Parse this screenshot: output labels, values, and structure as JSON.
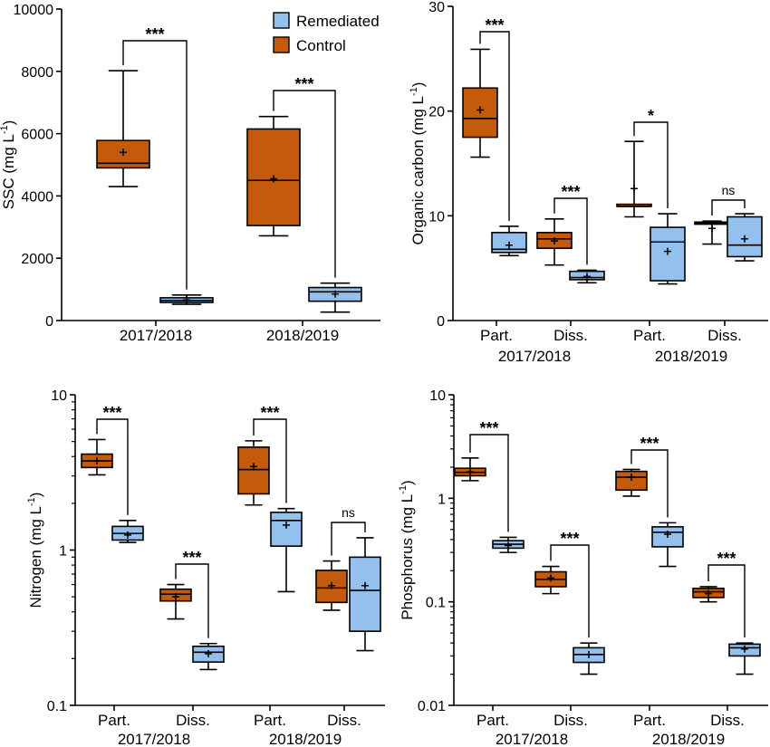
{
  "colors": {
    "control": "#C45A0C",
    "remediated": "#93C0EC",
    "outline": "#000000"
  },
  "legend": {
    "position": "top-right",
    "entries": [
      "Remediated",
      "Control"
    ]
  },
  "chart_data": [
    {
      "id": "ssc",
      "type": "box",
      "scale": "linear",
      "ylabel": "SSC (mg L",
      "ylabel_sup": "-1",
      "ylabel_end": ")",
      "ylim": [
        0,
        10000
      ],
      "yticks": [
        0,
        2000,
        4000,
        6000,
        8000,
        10000
      ],
      "yticklabels": [
        "0",
        "2000",
        "4000",
        "6000",
        "8000",
        "10000"
      ],
      "categories": [],
      "years": [
        "2017/2018",
        "2018/2019"
      ],
      "show_legend": true,
      "groups": [
        {
          "boxes": [
            {
              "series": "Control",
              "min": 4300,
              "q1": 4900,
              "median": 5050,
              "q3": 5780,
              "max": 8020,
              "mean": 5400
            },
            {
              "series": "Remediated",
              "min": 520,
              "q1": 580,
              "median": 640,
              "q3": 730,
              "max": 820,
              "mean": 660
            }
          ],
          "sig": "***"
        },
        {
          "boxes": [
            {
              "series": "Control",
              "min": 2720,
              "q1": 3050,
              "median": 4500,
              "q3": 6150,
              "max": 6550,
              "mean": 4550
            },
            {
              "series": "Remediated",
              "min": 270,
              "q1": 620,
              "median": 920,
              "q3": 1060,
              "max": 1200,
              "mean": 850
            }
          ],
          "sig": "***"
        }
      ]
    },
    {
      "id": "oc",
      "type": "box",
      "scale": "linear",
      "ylabel": "Organic carbon (mg L",
      "ylabel_sup": "-1",
      "ylabel_end": ")",
      "ylim": [
        0,
        30
      ],
      "yticks": [
        0,
        10,
        20,
        30
      ],
      "yticklabels": [
        "0",
        "10",
        "20",
        "30"
      ],
      "categories": [
        "Part.",
        "Diss.",
        "Part.",
        "Diss."
      ],
      "years": [
        "2017/2018",
        "2018/2019"
      ],
      "show_legend": false,
      "groups": [
        {
          "boxes": [
            {
              "series": "Control",
              "min": 15.6,
              "q1": 17.5,
              "median": 19.3,
              "q3": 22.2,
              "max": 25.9,
              "mean": 20.1
            },
            {
              "series": "Remediated",
              "min": 6.2,
              "q1": 6.5,
              "median": 6.8,
              "q3": 8.4,
              "max": 9.0,
              "mean": 7.2
            }
          ],
          "sig": "***"
        },
        {
          "boxes": [
            {
              "series": "Control",
              "min": 5.3,
              "q1": 6.9,
              "median": 7.8,
              "q3": 8.4,
              "max": 9.7,
              "mean": 7.6
            },
            {
              "series": "Remediated",
              "min": 3.6,
              "q1": 3.9,
              "median": 4.1,
              "q3": 4.7,
              "max": 4.8,
              "mean": 4.2
            }
          ],
          "sig": "***"
        },
        {
          "boxes": [
            {
              "series": "Control",
              "min": 9.9,
              "q1": 10.9,
              "median": 10.9,
              "q3": 11.1,
              "max": 17.1,
              "mean": 12.6
            },
            {
              "series": "Remediated",
              "min": 3.5,
              "q1": 3.8,
              "median": 7.5,
              "q3": 8.9,
              "max": 10.2,
              "mean": 6.6
            }
          ],
          "sig": "*"
        },
        {
          "boxes": [
            {
              "series": "Control",
              "min": 7.3,
              "q1": 9.2,
              "median": 9.3,
              "q3": 9.4,
              "max": 9.5,
              "mean": 8.8
            },
            {
              "series": "Remediated",
              "min": 5.7,
              "q1": 6.1,
              "median": 7.2,
              "q3": 9.9,
              "max": 10.2,
              "mean": 7.8
            }
          ],
          "sig": "ns"
        }
      ]
    },
    {
      "id": "n",
      "type": "box",
      "scale": "log",
      "ylabel": "Nitrogen (mg L",
      "ylabel_sup": "-1",
      "ylabel_end": ")",
      "ylim": [
        0.1,
        10
      ],
      "yticks": [
        0.1,
        1,
        10
      ],
      "yticklabels": [
        "0.1",
        "1",
        "10"
      ],
      "categories": [
        "Part.",
        "Diss.",
        "Part.",
        "Diss."
      ],
      "years": [
        "2017/2018",
        "2018/2019"
      ],
      "show_legend": false,
      "groups": [
        {
          "boxes": [
            {
              "series": "Control",
              "min": 3.05,
              "q1": 3.4,
              "median": 3.75,
              "q3": 4.15,
              "max": 5.15,
              "mean": 3.75
            },
            {
              "series": "Remediated",
              "min": 1.12,
              "q1": 1.16,
              "median": 1.28,
              "q3": 1.42,
              "max": 1.55,
              "mean": 1.25
            }
          ],
          "sig": "***"
        },
        {
          "boxes": [
            {
              "series": "Control",
              "min": 0.36,
              "q1": 0.47,
              "median": 0.52,
              "q3": 0.56,
              "max": 0.6,
              "mean": 0.5
            },
            {
              "series": "Remediated",
              "min": 0.17,
              "q1": 0.19,
              "median": 0.22,
              "q3": 0.24,
              "max": 0.25,
              "mean": 0.215
            }
          ],
          "sig": "***"
        },
        {
          "boxes": [
            {
              "series": "Control",
              "min": 1.95,
              "q1": 2.3,
              "median": 3.3,
              "q3": 4.6,
              "max": 5.05,
              "mean": 3.45
            },
            {
              "series": "Remediated",
              "min": 0.54,
              "q1": 1.06,
              "median": 1.55,
              "q3": 1.75,
              "max": 1.85,
              "mean": 1.45
            }
          ],
          "sig": "***"
        },
        {
          "boxes": [
            {
              "series": "Control",
              "min": 0.41,
              "q1": 0.46,
              "median": 0.57,
              "q3": 0.74,
              "max": 0.85,
              "mean": 0.59
            },
            {
              "series": "Remediated",
              "min": 0.225,
              "q1": 0.3,
              "median": 0.55,
              "q3": 0.9,
              "max": 1.2,
              "mean": 0.59
            }
          ],
          "sig": "ns"
        }
      ]
    },
    {
      "id": "p",
      "type": "box",
      "scale": "log",
      "ylabel": "Phosphorus (mg L",
      "ylabel_sup": "-1",
      "ylabel_end": ")",
      "ylim": [
        0.01,
        10
      ],
      "yticks": [
        0.01,
        0.1,
        1,
        10
      ],
      "yticklabels": [
        "0.01",
        "0.1",
        "1",
        "10"
      ],
      "categories": [
        "Part.",
        "Diss.",
        "Part.",
        "Diss."
      ],
      "years": [
        "2017/2018",
        "2018/2019"
      ],
      "show_legend": false,
      "groups": [
        {
          "boxes": [
            {
              "series": "Control",
              "min": 1.48,
              "q1": 1.65,
              "median": 1.78,
              "q3": 1.95,
              "max": 2.45,
              "mean": 1.8
            },
            {
              "series": "Remediated",
              "min": 0.3,
              "q1": 0.33,
              "median": 0.36,
              "q3": 0.39,
              "max": 0.42,
              "mean": 0.35
            }
          ],
          "sig": "***"
        },
        {
          "boxes": [
            {
              "series": "Control",
              "min": 0.12,
              "q1": 0.14,
              "median": 0.165,
              "q3": 0.195,
              "max": 0.22,
              "mean": 0.17
            },
            {
              "series": "Remediated",
              "min": 0.02,
              "q1": 0.026,
              "median": 0.031,
              "q3": 0.036,
              "max": 0.04,
              "mean": 0.031
            }
          ],
          "sig": "***"
        },
        {
          "boxes": [
            {
              "series": "Control",
              "min": 1.05,
              "q1": 1.2,
              "median": 1.6,
              "q3": 1.82,
              "max": 1.9,
              "mean": 1.6
            },
            {
              "series": "Remediated",
              "min": 0.22,
              "q1": 0.34,
              "median": 0.47,
              "q3": 0.53,
              "max": 0.58,
              "mean": 0.45
            }
          ],
          "sig": "***"
        },
        {
          "boxes": [
            {
              "series": "Control",
              "min": 0.1,
              "q1": 0.11,
              "median": 0.125,
              "q3": 0.135,
              "max": 0.14,
              "mean": 0.12
            },
            {
              "series": "Remediated",
              "min": 0.02,
              "q1": 0.03,
              "median": 0.036,
              "q3": 0.039,
              "max": 0.04,
              "mean": 0.035
            }
          ],
          "sig": "***"
        }
      ]
    }
  ]
}
